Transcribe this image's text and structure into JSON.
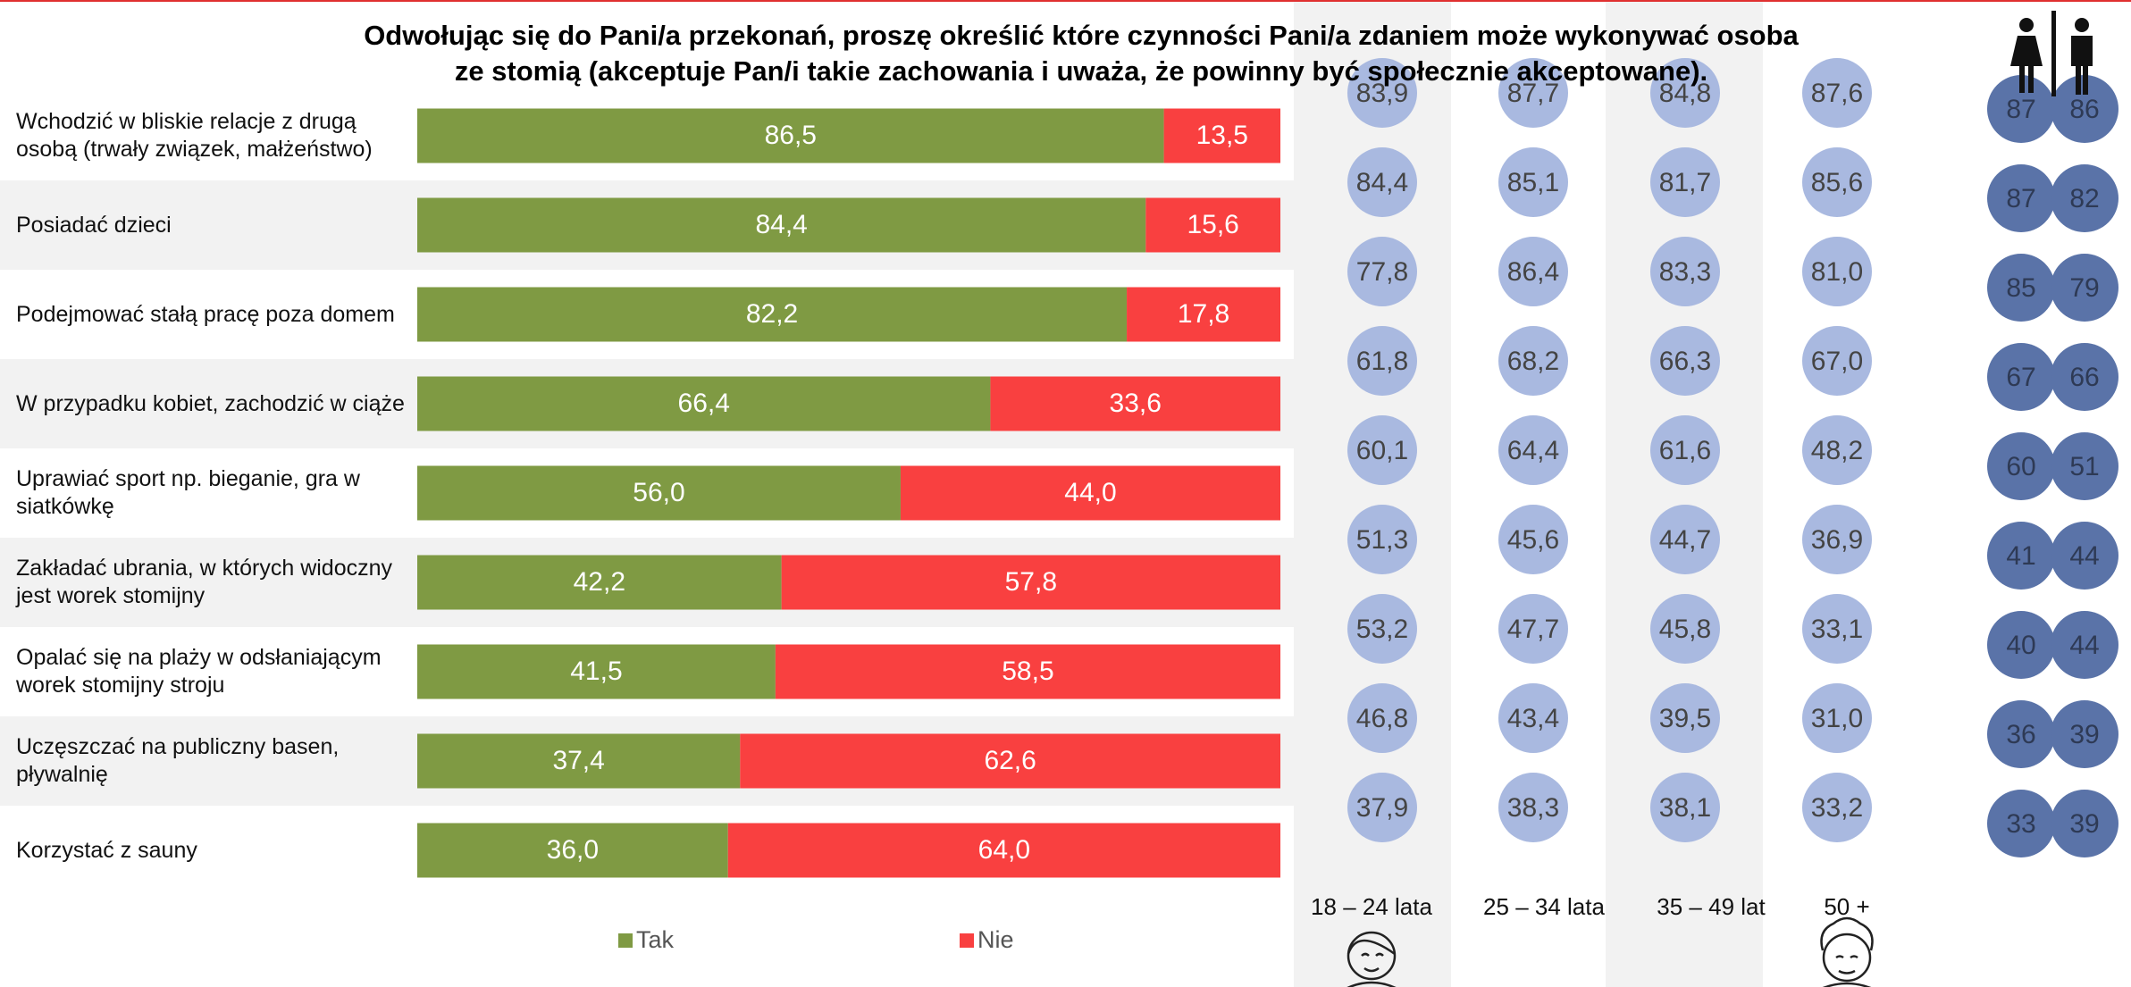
{
  "chart_data": [
    {
      "type": "stacked_bar",
      "title": "Odwołując się do Pani/a przekonań, proszę określić które czynności Pani/a zdaniem może wykonywać osoba ze stomią (akceptuje Pan/i takie zachowania i uważa, że powinny być społecznie akceptowane).",
      "categories": [
        "Wchodzić w bliskie relacje z drugą osobą (trwały związek, małżeństwo)",
        "Posiadać dzieci",
        "Podejmować stałą pracę poza domem",
        "W przypadku kobiet, zachodzić w ciąże",
        "Uprawiać sport np. bieganie, gra w siatkówkę",
        "Zakładać ubrania, w których widoczny jest worek stomijny",
        "Opalać się na plaży w odsłaniającym worek stomijny stroju",
        "Uczęszczać na publiczny basen, pływalnię",
        "Korzystać z sauny"
      ],
      "xlim": [
        0,
        100
      ],
      "series": [
        {
          "name": "Tak",
          "color": "#7f9a43",
          "values": [
            86.5,
            84.4,
            82.2,
            66.4,
            56.0,
            42.2,
            41.5,
            37.4,
            36.0
          ],
          "value_labels": [
            "86,5",
            "84,4",
            "82,2",
            "66,4",
            "56,0",
            "42,2",
            "41,5",
            "37,4",
            "36,0"
          ]
        },
        {
          "name": "Nie",
          "color": "#f94040",
          "values": [
            13.5,
            15.6,
            17.8,
            33.6,
            44.0,
            57.8,
            58.5,
            62.6,
            64.0
          ],
          "value_labels": [
            "13,5",
            "15,6",
            "17,8",
            "33,6",
            "44,0",
            "57,8",
            "58,5",
            "62,6",
            "64,0"
          ]
        }
      ]
    },
    {
      "type": "dot_table",
      "series": [
        {
          "name": "18 – 24 lata",
          "color": "#a9b9e0",
          "values": [
            83.9,
            84.4,
            77.8,
            61.8,
            60.1,
            51.3,
            53.2,
            46.8,
            37.9
          ],
          "value_labels": [
            "83,9",
            "84,4",
            "77,8",
            "61,8",
            "60,1",
            "51,3",
            "53,2",
            "46,8",
            "37,9"
          ]
        },
        {
          "name": "25 – 34 lata",
          "color": "#a9b9e0",
          "values": [
            87.7,
            85.1,
            86.4,
            68.2,
            64.4,
            45.6,
            47.7,
            43.4,
            38.3
          ],
          "value_labels": [
            "87,7",
            "85,1",
            "86,4",
            "68,2",
            "64,4",
            "45,6",
            "47,7",
            "43,4",
            "38,3"
          ]
        },
        {
          "name": "35 – 49 lat",
          "color": "#a9b9e0",
          "values": [
            84.8,
            81.7,
            83.3,
            66.3,
            61.6,
            44.7,
            45.8,
            39.5,
            38.1
          ],
          "value_labels": [
            "84,8",
            "81,7",
            "83,3",
            "66,3",
            "61,6",
            "44,7",
            "45,8",
            "39,5",
            "38,1"
          ]
        },
        {
          "name": "50 +",
          "color": "#a9b9e0",
          "values": [
            87.6,
            85.6,
            81.0,
            67.0,
            48.2,
            36.9,
            33.1,
            31.0,
            33.2
          ],
          "value_labels": [
            "87,6",
            "85,6",
            "81,0",
            "67,0",
            "48,2",
            "36,9",
            "33,1",
            "31,0",
            "33,2"
          ]
        },
        {
          "color": "#5a73a8",
          "values": [
            87,
            87,
            85,
            67,
            60,
            41,
            40,
            36,
            33
          ]
        },
        {
          "color": "#5a73a8",
          "values": [
            86,
            82,
            79,
            66,
            51,
            44,
            44,
            39,
            39
          ]
        }
      ]
    }
  ]
}
